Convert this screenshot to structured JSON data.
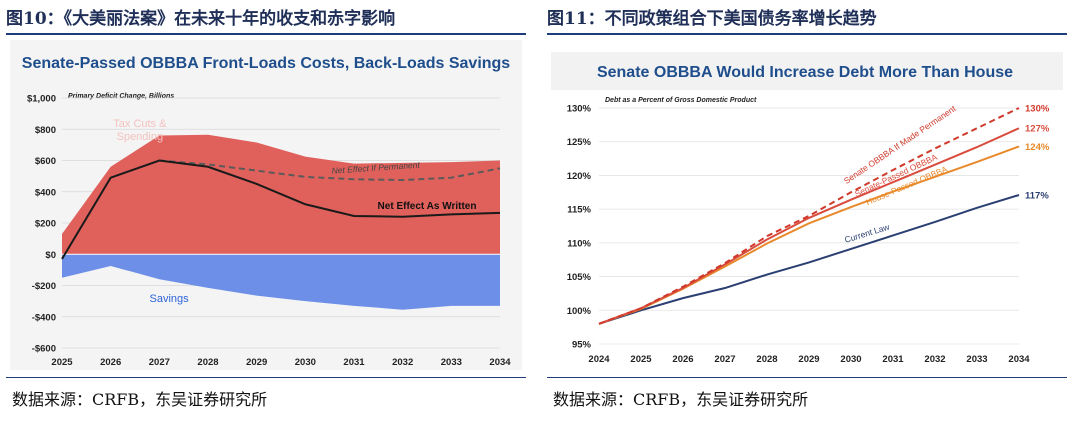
{
  "figures": [
    {
      "caption": "图10：《大美丽法案》在未来十年的收支和赤字影响",
      "source": "数据来源：CRFB，东吴证券研究所"
    },
    {
      "caption": "图11：不同政策组合下美国债务率增长趋势",
      "source": "数据来源：CRFB，东吴证券研究所"
    }
  ],
  "colors": {
    "title_blue": "#1f4e8c",
    "tax_fill": "#e0615c",
    "tax_label": "#f3c2bf",
    "savings_fill": "#6d8fe8",
    "savings_label": "#2e63d8",
    "net_line": "#1a1a1a",
    "permanent_line": "#5a5a5a",
    "senate_line": "#d94c3d",
    "permanent_dash": "#d0392b",
    "house_line": "#e88a2b",
    "current_law": "#2b3f72"
  },
  "chart_data": [
    {
      "type": "area",
      "title": "Senate-Passed OBBBA Front-Loads Costs, Back-Loads Savings",
      "subtitle": "Primary Deficit Change, Billions",
      "x": [
        2025,
        2026,
        2027,
        2028,
        2029,
        2030,
        2031,
        2032,
        2033,
        2034
      ],
      "ylim": [
        -600,
        1000
      ],
      "yticks": [
        -600,
        -400,
        -200,
        0,
        200,
        400,
        600,
        800,
        1000
      ],
      "ytick_labels": [
        "-$600",
        "-$400",
        "-$200",
        "$0",
        "$200",
        "$400",
        "$600",
        "$800",
        "$1,000"
      ],
      "grid": true,
      "series": [
        {
          "name": "Tax Cuts & Spending",
          "kind": "area",
          "x": [
            2025,
            2026,
            2027,
            2028,
            2029,
            2030,
            2031,
            2032,
            2033,
            2034
          ],
          "values": [
            130,
            560,
            760,
            765,
            715,
            625,
            580,
            585,
            590,
            600
          ]
        },
        {
          "name": "Savings",
          "kind": "area",
          "x": [
            2025,
            2026,
            2027,
            2028,
            2029,
            2030,
            2031,
            2032,
            2033,
            2034
          ],
          "values": [
            -150,
            -75,
            -160,
            -215,
            -265,
            -300,
            -330,
            -355,
            -330,
            -330
          ]
        },
        {
          "name": "Net Effect As Written",
          "kind": "line",
          "x": [
            2025,
            2026,
            2027,
            2028,
            2029,
            2030,
            2031,
            2032,
            2033,
            2034
          ],
          "values": [
            -30,
            490,
            600,
            560,
            450,
            320,
            245,
            240,
            255,
            265
          ]
        },
        {
          "name": "Net Effect If Permanent",
          "kind": "dashed",
          "x": [
            2027,
            2028,
            2029,
            2030,
            2031,
            2032,
            2033,
            2034
          ],
          "values": [
            600,
            575,
            535,
            495,
            480,
            475,
            490,
            550
          ]
        }
      ]
    },
    {
      "type": "line",
      "title": "Senate OBBBA Would Increase Debt More Than House",
      "subtitle": "Debt as a Percent of Gross Domestic Product",
      "x": [
        2024,
        2025,
        2026,
        2027,
        2028,
        2029,
        2030,
        2031,
        2032,
        2033,
        2034
      ],
      "ylim": [
        95,
        130
      ],
      "yticks": [
        95,
        100,
        105,
        110,
        115,
        120,
        125,
        130
      ],
      "ytick_labels": [
        "95%",
        "100%",
        "105%",
        "110%",
        "115%",
        "120%",
        "125%",
        "130%"
      ],
      "grid": true,
      "series": [
        {
          "name": "Senate OBBBA If Made Permanent",
          "end_label": "130%",
          "values": [
            98,
            100.3,
            103.5,
            107,
            111,
            114,
            117.5,
            120.8,
            124,
            127,
            130
          ]
        },
        {
          "name": "Senate-Passed OBBBA",
          "end_label": "127%",
          "values": [
            98,
            100.3,
            103.3,
            106.8,
            110.5,
            113.7,
            116.4,
            119,
            121.6,
            124.2,
            127
          ]
        },
        {
          "name": "House-Passed OBBBA",
          "end_label": "124%",
          "values": [
            98,
            100.2,
            103.2,
            106.5,
            109.9,
            112.9,
            115.3,
            117.6,
            119.8,
            122,
            124.3
          ]
        },
        {
          "name": "Current Law",
          "end_label": "117%",
          "values": [
            98,
            100,
            101.8,
            103.3,
            105.3,
            107.1,
            109.1,
            111.1,
            113.1,
            115.2,
            117.1
          ]
        }
      ]
    }
  ]
}
